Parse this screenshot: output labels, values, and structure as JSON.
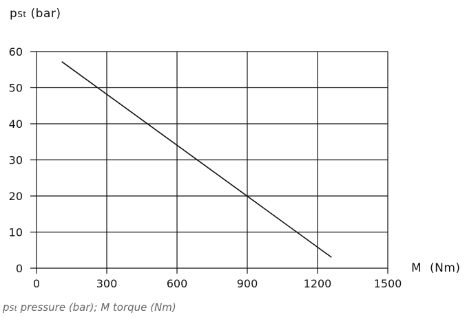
{
  "chart_data": {
    "type": "line",
    "ylabel": {
      "symbol": "p",
      "subscript": "St",
      "unit": "(bar)"
    },
    "xlabel": {
      "symbol": "M",
      "unit": "(Nm)"
    },
    "xlim": [
      0,
      1500
    ],
    "ylim": [
      0,
      60
    ],
    "xticks": [
      0,
      300,
      600,
      900,
      1200,
      1500
    ],
    "yticks": [
      0,
      10,
      20,
      30,
      40,
      50,
      60
    ],
    "grid": true,
    "series": [
      {
        "x": [
          108,
          1260
        ],
        "y": [
          57.2,
          3
        ]
      }
    ]
  },
  "caption": {
    "symbol": "p",
    "subscript": "St",
    "text": " pressure (bar); M torque (Nm)"
  }
}
